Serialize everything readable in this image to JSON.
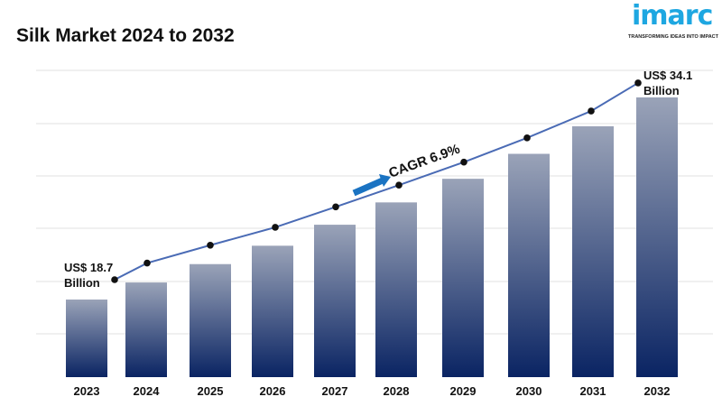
{
  "title": "Silk Market 2024 to 2032",
  "logo": {
    "text": "imarc",
    "tagline": "TRANSFORMING IDEAS INTO IMPACT",
    "color": "#1ea7e1"
  },
  "chart_data": {
    "type": "bar",
    "title": "Silk Market 2024 to 2032",
    "categories": [
      "2023",
      "2024",
      "2025",
      "2026",
      "2027",
      "2028",
      "2029",
      "2030",
      "2031",
      "2032"
    ],
    "series": [
      {
        "values": [
          18.7,
          20.0,
          21.4,
          22.8,
          24.4,
          26.1,
          27.9,
          29.8,
          31.9,
          34.1
        ]
      }
    ],
    "trend_line": true,
    "unit": "US$ Billion",
    "annotations": {
      "start": {
        "line1": "US$ 18.7",
        "line2": "Billion"
      },
      "end": {
        "line1": "US$ 34.1",
        "line2": "Billion"
      },
      "cagr": "CAGR 6.9%"
    },
    "grid": true,
    "colors": {
      "bar_top": "#9aa3b8",
      "bar_bottom": "#0a2463",
      "line": "#4a6bb5",
      "arrow": "#1a73c2"
    }
  }
}
